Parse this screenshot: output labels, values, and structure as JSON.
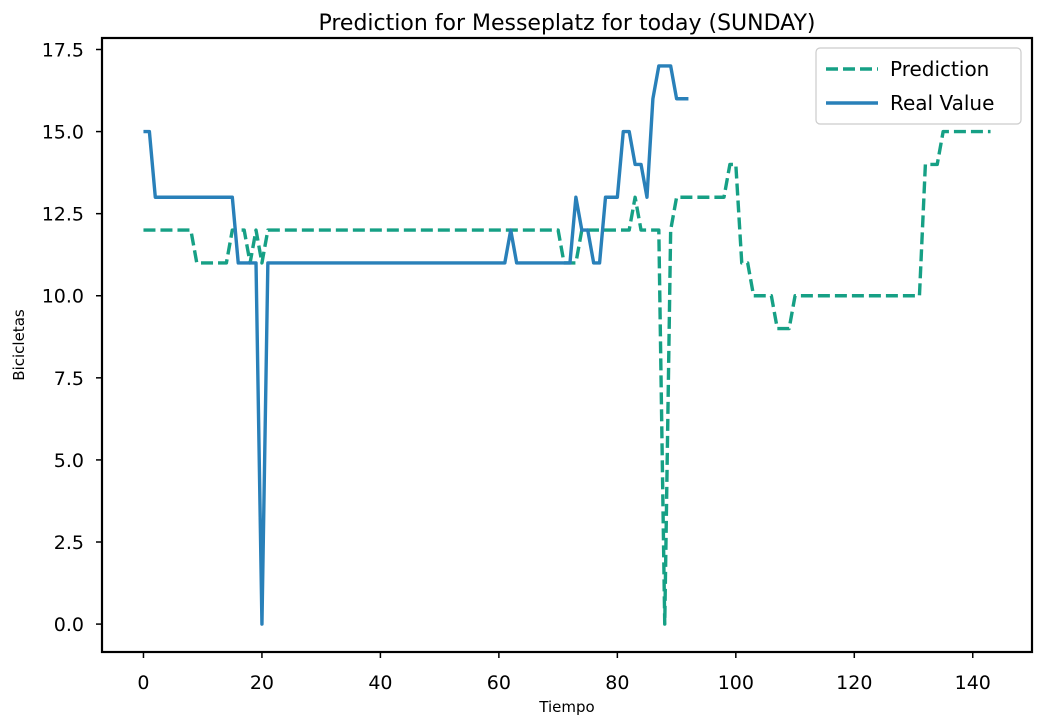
{
  "chart_data": {
    "type": "line",
    "title": "Prediction for Messeplatz for today (SUNDAY)",
    "xlabel": "Tiempo",
    "ylabel": "Bicicletas",
    "xlim": [
      -7,
      150
    ],
    "ylim": [
      -0.85,
      17.85
    ],
    "xticks": [
      0,
      20,
      40,
      60,
      80,
      100,
      120,
      140
    ],
    "yticks": [
      0.0,
      2.5,
      5.0,
      7.5,
      10.0,
      12.5,
      15.0,
      17.5
    ],
    "xtick_labels": [
      "0",
      "20",
      "40",
      "60",
      "80",
      "100",
      "120",
      "140"
    ],
    "ytick_labels": [
      "0.0",
      "2.5",
      "5.0",
      "7.5",
      "10.0",
      "12.5",
      "15.0",
      "17.5"
    ],
    "grid": false,
    "legend_position": "top-right",
    "series": [
      {
        "name": "Prediction",
        "color": "#16a085",
        "style": "dashed",
        "x": [
          0,
          1,
          2,
          3,
          4,
          5,
          6,
          7,
          8,
          9,
          10,
          11,
          12,
          13,
          14,
          15,
          16,
          17,
          18,
          19,
          20,
          21,
          22,
          23,
          24,
          25,
          26,
          27,
          28,
          29,
          30,
          31,
          32,
          33,
          34,
          35,
          36,
          37,
          38,
          39,
          40,
          41,
          42,
          43,
          44,
          45,
          46,
          47,
          48,
          49,
          50,
          51,
          52,
          53,
          54,
          55,
          56,
          57,
          58,
          59,
          60,
          61,
          62,
          63,
          64,
          65,
          66,
          67,
          68,
          69,
          70,
          71,
          72,
          73,
          74,
          75,
          76,
          77,
          78,
          79,
          80,
          81,
          82,
          83,
          84,
          85,
          86,
          87,
          88,
          89,
          90,
          91,
          92,
          93,
          94,
          95,
          96,
          97,
          98,
          99,
          100,
          101,
          102,
          103,
          104,
          105,
          106,
          107,
          108,
          109,
          110,
          111,
          112,
          113,
          114,
          115,
          116,
          117,
          118,
          119,
          120,
          121,
          122,
          123,
          124,
          125,
          126,
          127,
          128,
          129,
          130,
          131,
          132,
          133,
          134,
          135,
          136,
          137,
          138,
          139,
          140,
          141,
          142,
          143
        ],
        "values": [
          12,
          12,
          12,
          12,
          12,
          12,
          12,
          12,
          12,
          11,
          11,
          11,
          11,
          11,
          11,
          12,
          12,
          12,
          11,
          12,
          11,
          12,
          12,
          12,
          12,
          12,
          12,
          12,
          12,
          12,
          12,
          12,
          12,
          12,
          12,
          12,
          12,
          12,
          12,
          12,
          12,
          12,
          12,
          12,
          12,
          12,
          12,
          12,
          12,
          12,
          12,
          12,
          12,
          12,
          12,
          12,
          12,
          12,
          12,
          12,
          12,
          12,
          12,
          12,
          12,
          12,
          12,
          12,
          12,
          12,
          12,
          11,
          11,
          11,
          12,
          12,
          12,
          12,
          12,
          12,
          12,
          12,
          12,
          13,
          12,
          12,
          12,
          12,
          0,
          12,
          13,
          13,
          13,
          13,
          13,
          13,
          13,
          13,
          13,
          14,
          14,
          11,
          11,
          10,
          10,
          10,
          10,
          9,
          9,
          9,
          10,
          10,
          10,
          10,
          10,
          10,
          10,
          10,
          10,
          10,
          10,
          10,
          10,
          10,
          10,
          10,
          10,
          10,
          10,
          10,
          10,
          10,
          14,
          14,
          14,
          15,
          15,
          15,
          15,
          15,
          15,
          15,
          15,
          15
        ]
      },
      {
        "name": "Real Value",
        "color": "#2980b9",
        "style": "solid",
        "x": [
          0,
          1,
          2,
          3,
          4,
          5,
          6,
          7,
          8,
          9,
          10,
          11,
          12,
          13,
          14,
          15,
          16,
          17,
          18,
          19,
          20,
          21,
          22,
          23,
          24,
          25,
          26,
          27,
          28,
          29,
          30,
          31,
          32,
          33,
          34,
          35,
          36,
          37,
          38,
          39,
          40,
          41,
          42,
          43,
          44,
          45,
          46,
          47,
          48,
          49,
          50,
          51,
          52,
          53,
          54,
          55,
          56,
          57,
          58,
          59,
          60,
          61,
          62,
          63,
          64,
          65,
          66,
          67,
          68,
          69,
          70,
          71,
          72,
          73,
          74,
          75,
          76,
          77,
          78,
          79,
          80,
          81,
          82,
          83,
          84,
          85,
          86,
          87,
          88,
          89,
          90,
          91,
          92
        ],
        "values": [
          15,
          15,
          13,
          13,
          13,
          13,
          13,
          13,
          13,
          13,
          13,
          13,
          13,
          13,
          13,
          13,
          11,
          11,
          11,
          11,
          0,
          11,
          11,
          11,
          11,
          11,
          11,
          11,
          11,
          11,
          11,
          11,
          11,
          11,
          11,
          11,
          11,
          11,
          11,
          11,
          11,
          11,
          11,
          11,
          11,
          11,
          11,
          11,
          11,
          11,
          11,
          11,
          11,
          11,
          11,
          11,
          11,
          11,
          11,
          11,
          11,
          11,
          12,
          11,
          11,
          11,
          11,
          11,
          11,
          11,
          11,
          11,
          11,
          13,
          12,
          12,
          11,
          11,
          13,
          13,
          13,
          15,
          15,
          14,
          14,
          13,
          16,
          17,
          17,
          17,
          16,
          16,
          16
        ]
      }
    ]
  }
}
